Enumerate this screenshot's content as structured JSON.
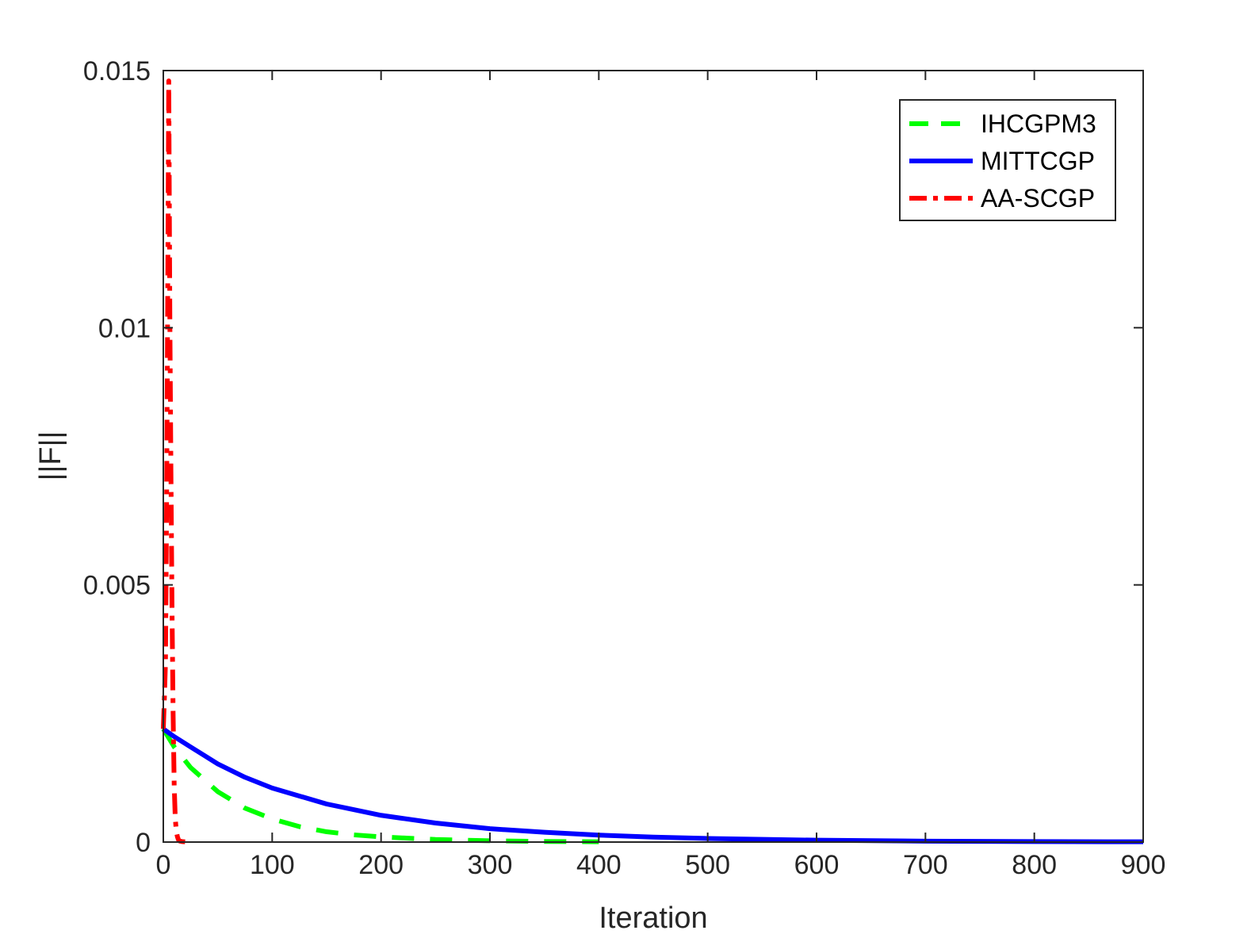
{
  "chart_data": {
    "type": "line",
    "xlabel": "Iteration",
    "ylabel": "||F||",
    "xlim": [
      0,
      900
    ],
    "ylim": [
      0,
      0.015
    ],
    "xticks": [
      0,
      100,
      200,
      300,
      400,
      500,
      600,
      700,
      800,
      900
    ],
    "yticks": [
      0,
      0.005,
      0.01,
      0.015
    ],
    "xtick_labels": [
      "0",
      "100",
      "200",
      "300",
      "400",
      "500",
      "600",
      "700",
      "800",
      "900"
    ],
    "ytick_labels": [
      "0",
      "0.005",
      "0.01",
      "0.015"
    ],
    "legend_position": "top-right",
    "grid": false,
    "series": [
      {
        "name": "IHCGPM3",
        "color": "#00ff00",
        "style": "dashed",
        "x": [
          0,
          10,
          25,
          50,
          75,
          100,
          125,
          150,
          175,
          200,
          250,
          300,
          350,
          400
        ],
        "y": [
          0.0022,
          0.00185,
          0.00145,
          0.00098,
          0.00066,
          0.00045,
          0.0003,
          0.0002,
          0.00014,
          0.0001,
          5e-05,
          2.5e-05,
          1.2e-05,
          5e-06
        ]
      },
      {
        "name": "MITTCGP",
        "color": "#0000ff",
        "style": "solid",
        "x": [
          0,
          10,
          25,
          50,
          75,
          100,
          150,
          200,
          250,
          300,
          350,
          400,
          450,
          500,
          600,
          700,
          800,
          900
        ],
        "y": [
          0.0022,
          0.00205,
          0.00185,
          0.00152,
          0.00126,
          0.00105,
          0.00074,
          0.00052,
          0.00037,
          0.00026,
          0.00019,
          0.000135,
          9.7e-05,
          7e-05,
          3.6e-05,
          1.8e-05,
          9e-06,
          5e-06
        ]
      },
      {
        "name": "AA-SCGP",
        "color": "#ff0000",
        "style": "dashdot",
        "x": [
          0,
          1,
          2,
          3,
          4,
          5,
          6,
          7,
          8,
          9,
          10,
          11,
          12,
          13,
          14,
          15,
          17,
          20
        ],
        "y": [
          0.0022,
          0.0028,
          0.0035,
          0.0065,
          0.0105,
          0.0148,
          0.0102,
          0.0072,
          0.0045,
          0.0025,
          0.0011,
          0.00045,
          0.0002,
          0.0001,
          4e-05,
          2e-05,
          1e-05,
          5e-06
        ]
      }
    ]
  }
}
